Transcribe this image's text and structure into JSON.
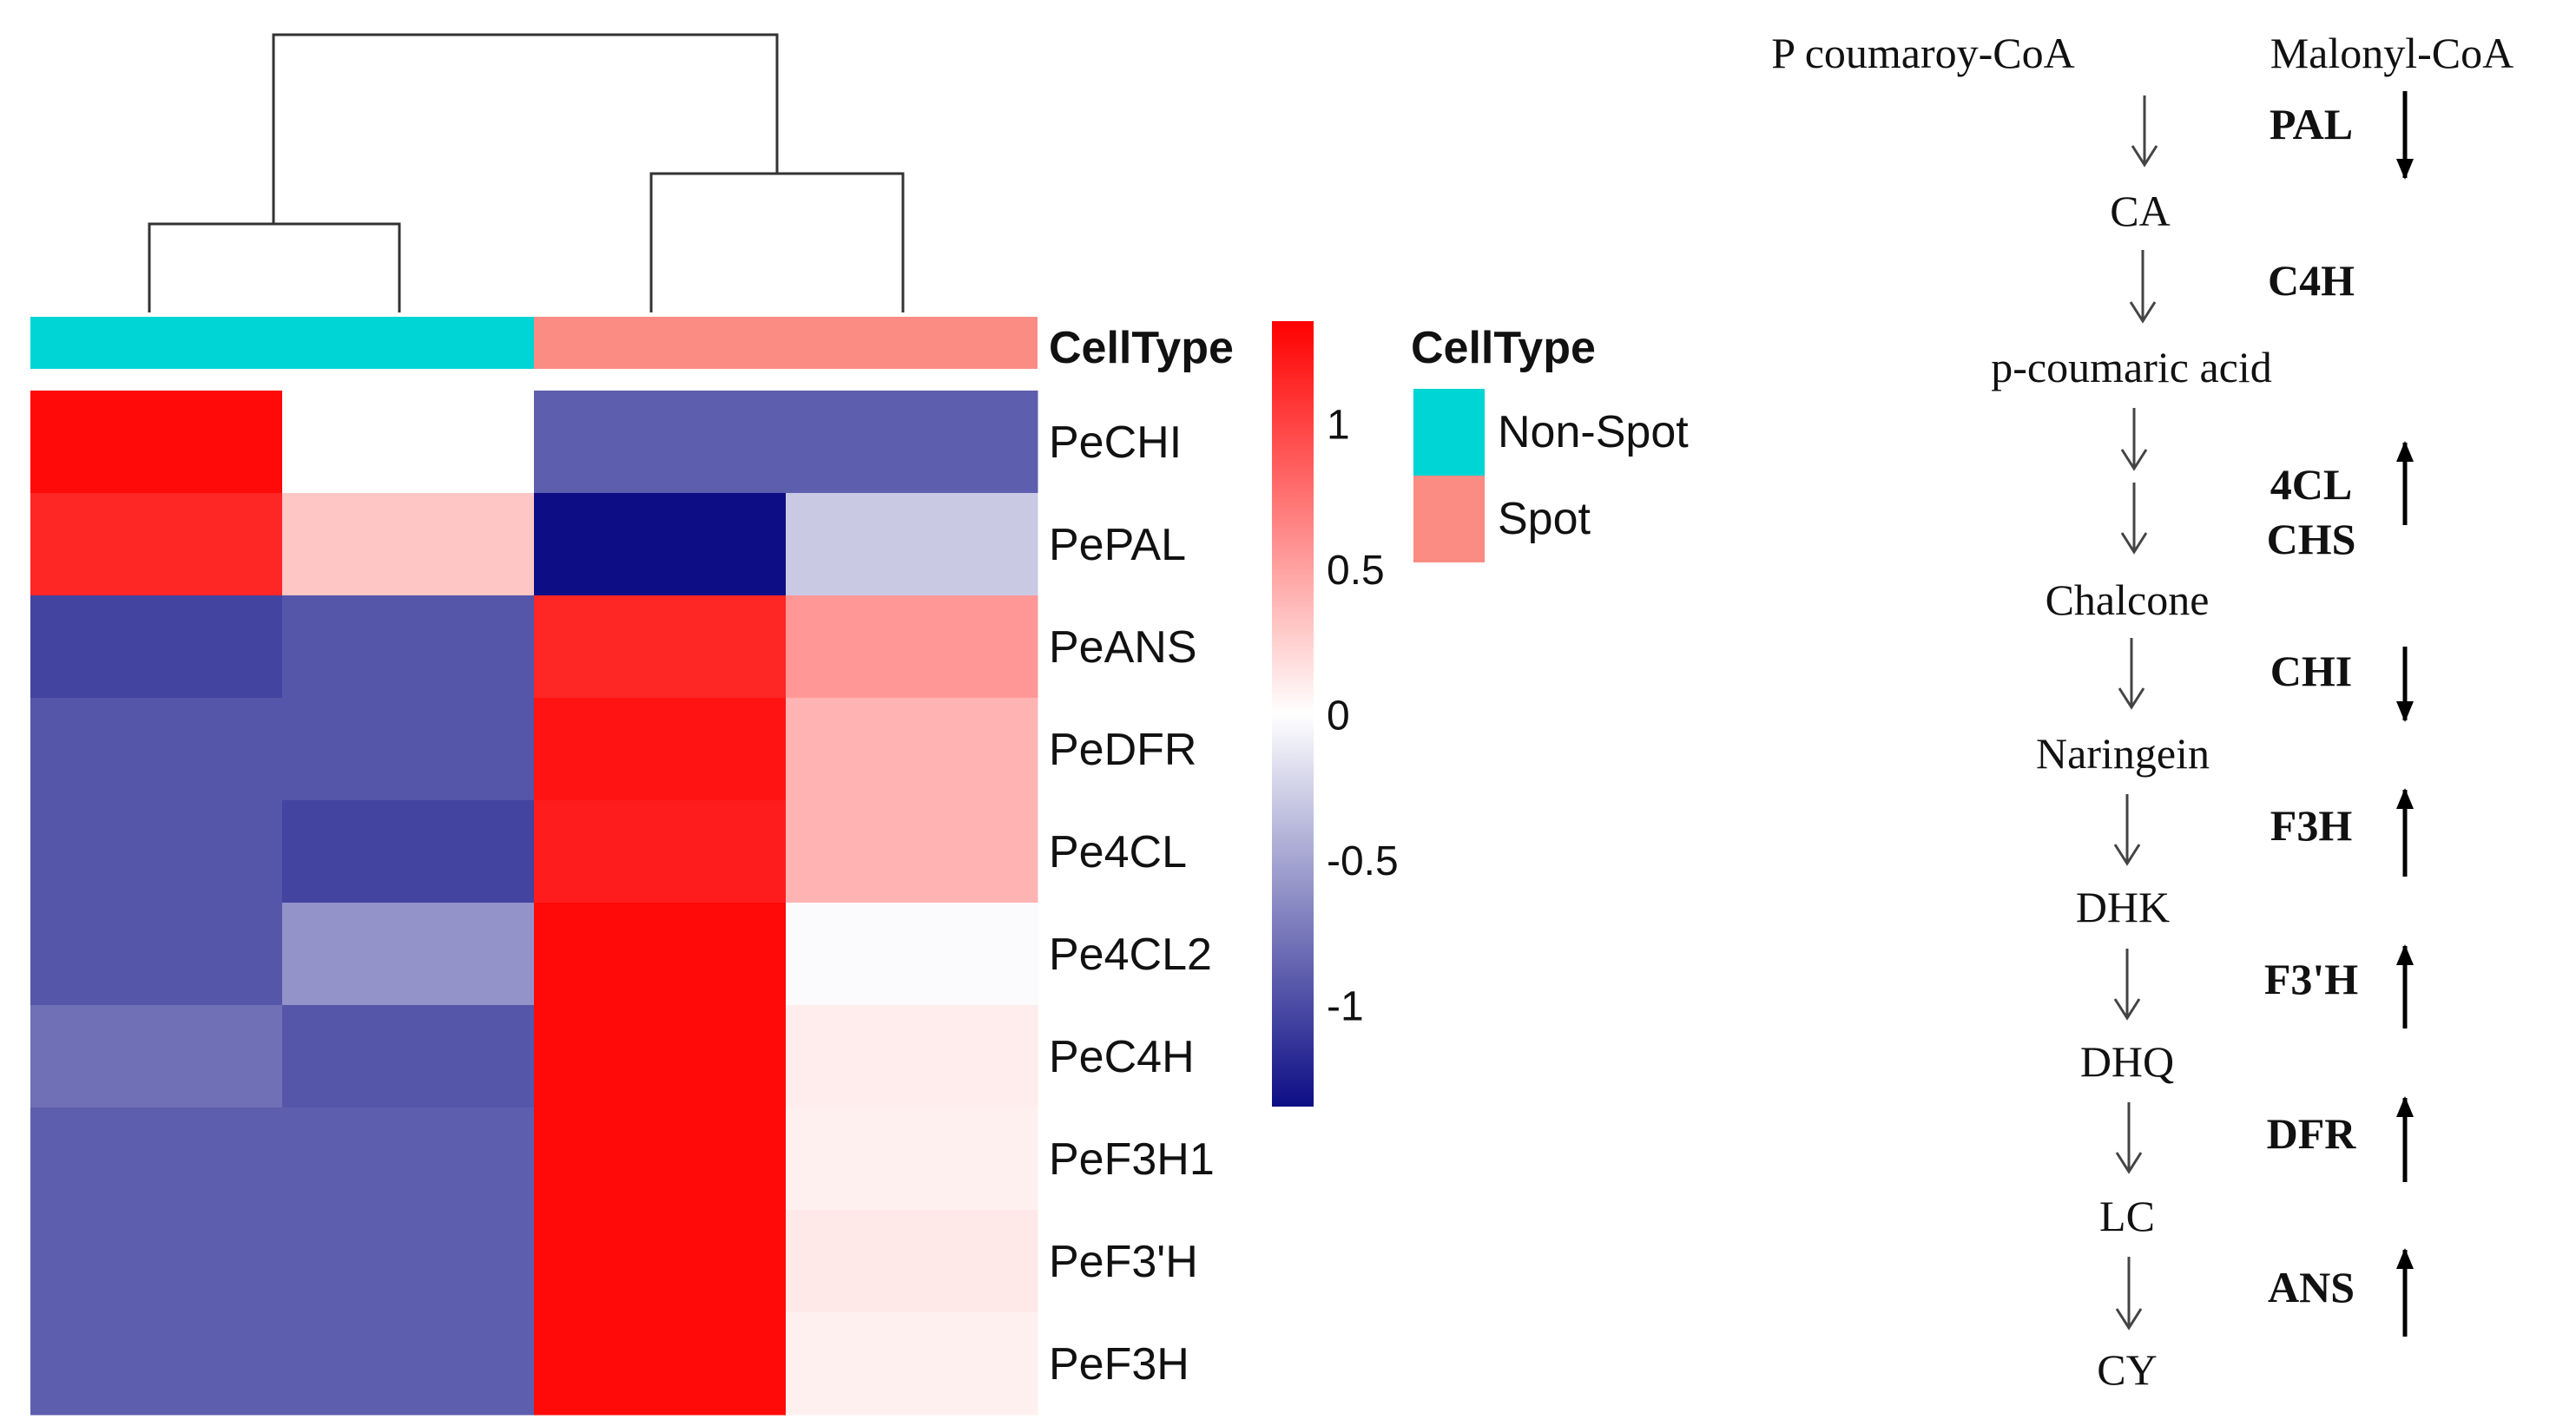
{
  "chart_data": [
    {
      "type": "heatmap",
      "title": "",
      "rows": [
        "PeCHI",
        "PePAL",
        "PeANS",
        "PeDFR",
        "Pe4CL",
        "Pe4CL2",
        "PeC4H",
        "PeF3H1",
        "PeF3'H",
        "PeF3H"
      ],
      "column_groups": [
        "Non-Spot",
        "Non-Spot",
        "Spot",
        "Spot"
      ],
      "values": [
        [
          1.3,
          0.0,
          -0.9,
          -0.9
        ],
        [
          1.15,
          0.3,
          -1.4,
          -0.3
        ],
        [
          -1.05,
          -0.95,
          1.15,
          0.55
        ],
        [
          -0.95,
          -0.95,
          1.25,
          0.4
        ],
        [
          -0.95,
          -1.05,
          1.2,
          0.4
        ],
        [
          -0.95,
          -0.6,
          1.3,
          -0.02
        ],
        [
          -0.8,
          -0.95,
          1.3,
          0.1
        ],
        [
          -0.9,
          -0.9,
          1.3,
          0.08
        ],
        [
          -0.9,
          -0.9,
          1.3,
          0.12
        ],
        [
          -0.9,
          -0.9,
          1.3,
          0.08
        ]
      ],
      "color_scale": {
        "min": -1.35,
        "max": 1.35,
        "ticks": [
          1,
          0.5,
          0,
          -0.5,
          -1
        ],
        "tick_labels": [
          "1",
          "0.5",
          "0",
          "-0.5",
          "-1"
        ],
        "low_color": "#0d0d85",
        "mid_color": "#ffffff",
        "high_color": "#ff0000"
      },
      "annotation": {
        "title": "CellType",
        "legend": [
          {
            "label": "Non-Spot",
            "color": "#00d5d5"
          },
          {
            "label": "Spot",
            "color": "#fa8c84"
          }
        ]
      },
      "dendrogram": "((Non-Spot,Non-Spot),(Spot,Spot))"
    },
    {
      "type": "pathway",
      "sources": [
        "P coumaroy-CoA",
        "Malonyl-CoA"
      ],
      "nodes": [
        "CA",
        "p-coumaric acid",
        "Chalcone",
        "Naringein",
        "DHK",
        "DHQ",
        "LC",
        "CY"
      ],
      "enzymes": [
        {
          "name": "PAL",
          "direction": "down"
        },
        {
          "name": "C4H",
          "direction": ""
        },
        {
          "name": "4CL",
          "direction": "up"
        },
        {
          "name": "CHS",
          "direction": ""
        },
        {
          "name": "CHI",
          "direction": "down"
        },
        {
          "name": "F3H",
          "direction": "up"
        },
        {
          "name": "F3'H",
          "direction": "up"
        },
        {
          "name": "DFR",
          "direction": "up"
        },
        {
          "name": "ANS",
          "direction": "up"
        }
      ]
    }
  ]
}
